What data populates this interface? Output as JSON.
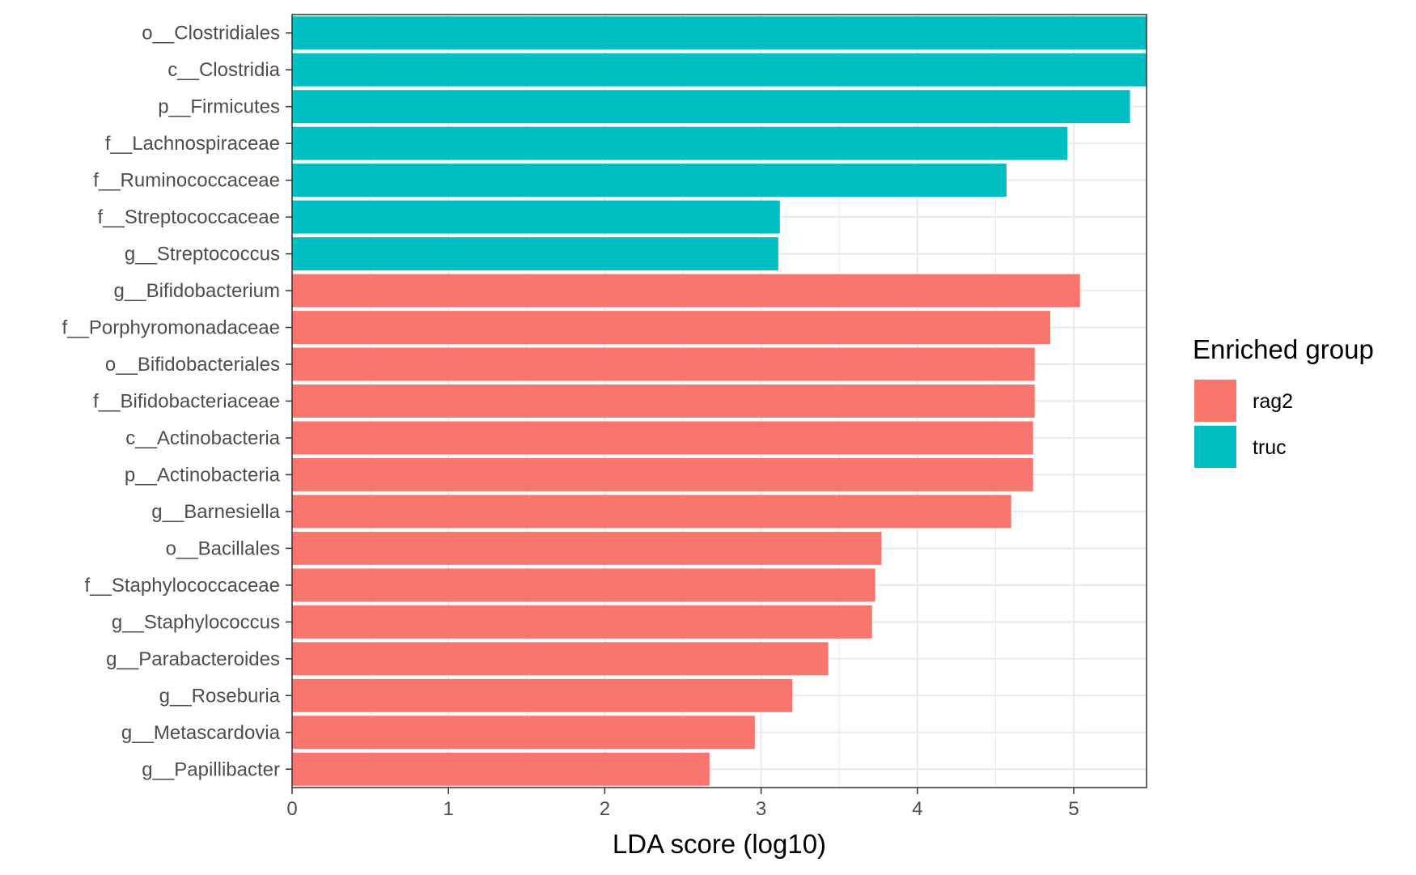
{
  "chart_data": {
    "type": "bar",
    "orientation": "horizontal",
    "title": "",
    "xlabel": "LDA score (log10)",
    "ylabel": "",
    "xlim": [
      0,
      5.47
    ],
    "x_ticks": [
      0,
      1,
      2,
      3,
      4,
      5
    ],
    "grid": true,
    "legend": {
      "title": "Enriched group",
      "placement": "right",
      "entries": [
        {
          "name": "rag2",
          "color": "#F8766D"
        },
        {
          "name": "truc",
          "color": "#00BFC4"
        }
      ]
    },
    "categories": [
      "o__Clostridiales",
      "c__Clostridia",
      "p__Firmicutes",
      "f__Lachnospiraceae",
      "f__Ruminococcaceae",
      "f__Streptococcaceae",
      "g__Streptococcus",
      "g__Bifidobacterium",
      "f__Porphyromonadaceae",
      "o__Bifidobacteriales",
      "f__Bifidobacteriaceae",
      "c__Actinobacteria",
      "p__Actinobacteria",
      "g__Barnesiella",
      "o__Bacillales",
      "f__Staphylococcaceae",
      "g__Staphylococcus",
      "g__Parabacteroides",
      "g__Roseburia",
      "g__Metascardovia",
      "g__Papillibacter"
    ],
    "values": [
      5.47,
      5.47,
      5.36,
      4.96,
      4.57,
      3.12,
      3.11,
      5.04,
      4.85,
      4.75,
      4.75,
      4.74,
      4.74,
      4.6,
      3.77,
      3.73,
      3.71,
      3.43,
      3.2,
      2.96,
      2.67
    ],
    "groups": [
      "truc",
      "truc",
      "truc",
      "truc",
      "truc",
      "truc",
      "truc",
      "rag2",
      "rag2",
      "rag2",
      "rag2",
      "rag2",
      "rag2",
      "rag2",
      "rag2",
      "rag2",
      "rag2",
      "rag2",
      "rag2",
      "rag2",
      "rag2"
    ]
  }
}
